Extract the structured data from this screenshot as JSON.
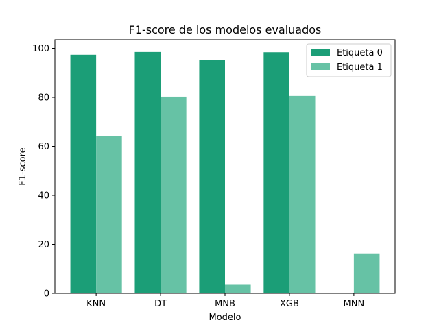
{
  "chart_data": {
    "type": "bar",
    "title": "F1-score de los modelos evaluados",
    "xlabel": "Modelo",
    "ylabel": "F1-score",
    "categories": [
      "KNN",
      "DT",
      "MNB",
      "XGB",
      "MNN"
    ],
    "series": [
      {
        "name": "Etiqueta 0",
        "color": "#1b9e77",
        "values": [
          97.4,
          98.5,
          95.2,
          98.4,
          0
        ]
      },
      {
        "name": "Etiqueta 1",
        "color": "#66c2a5",
        "values": [
          64.3,
          80.3,
          3.5,
          80.6,
          16.3
        ]
      }
    ],
    "ylim": [
      0,
      103.5
    ],
    "yticks": [
      0,
      20,
      40,
      60,
      80,
      100
    ],
    "grid": false,
    "legend_position": "top-right"
  }
}
